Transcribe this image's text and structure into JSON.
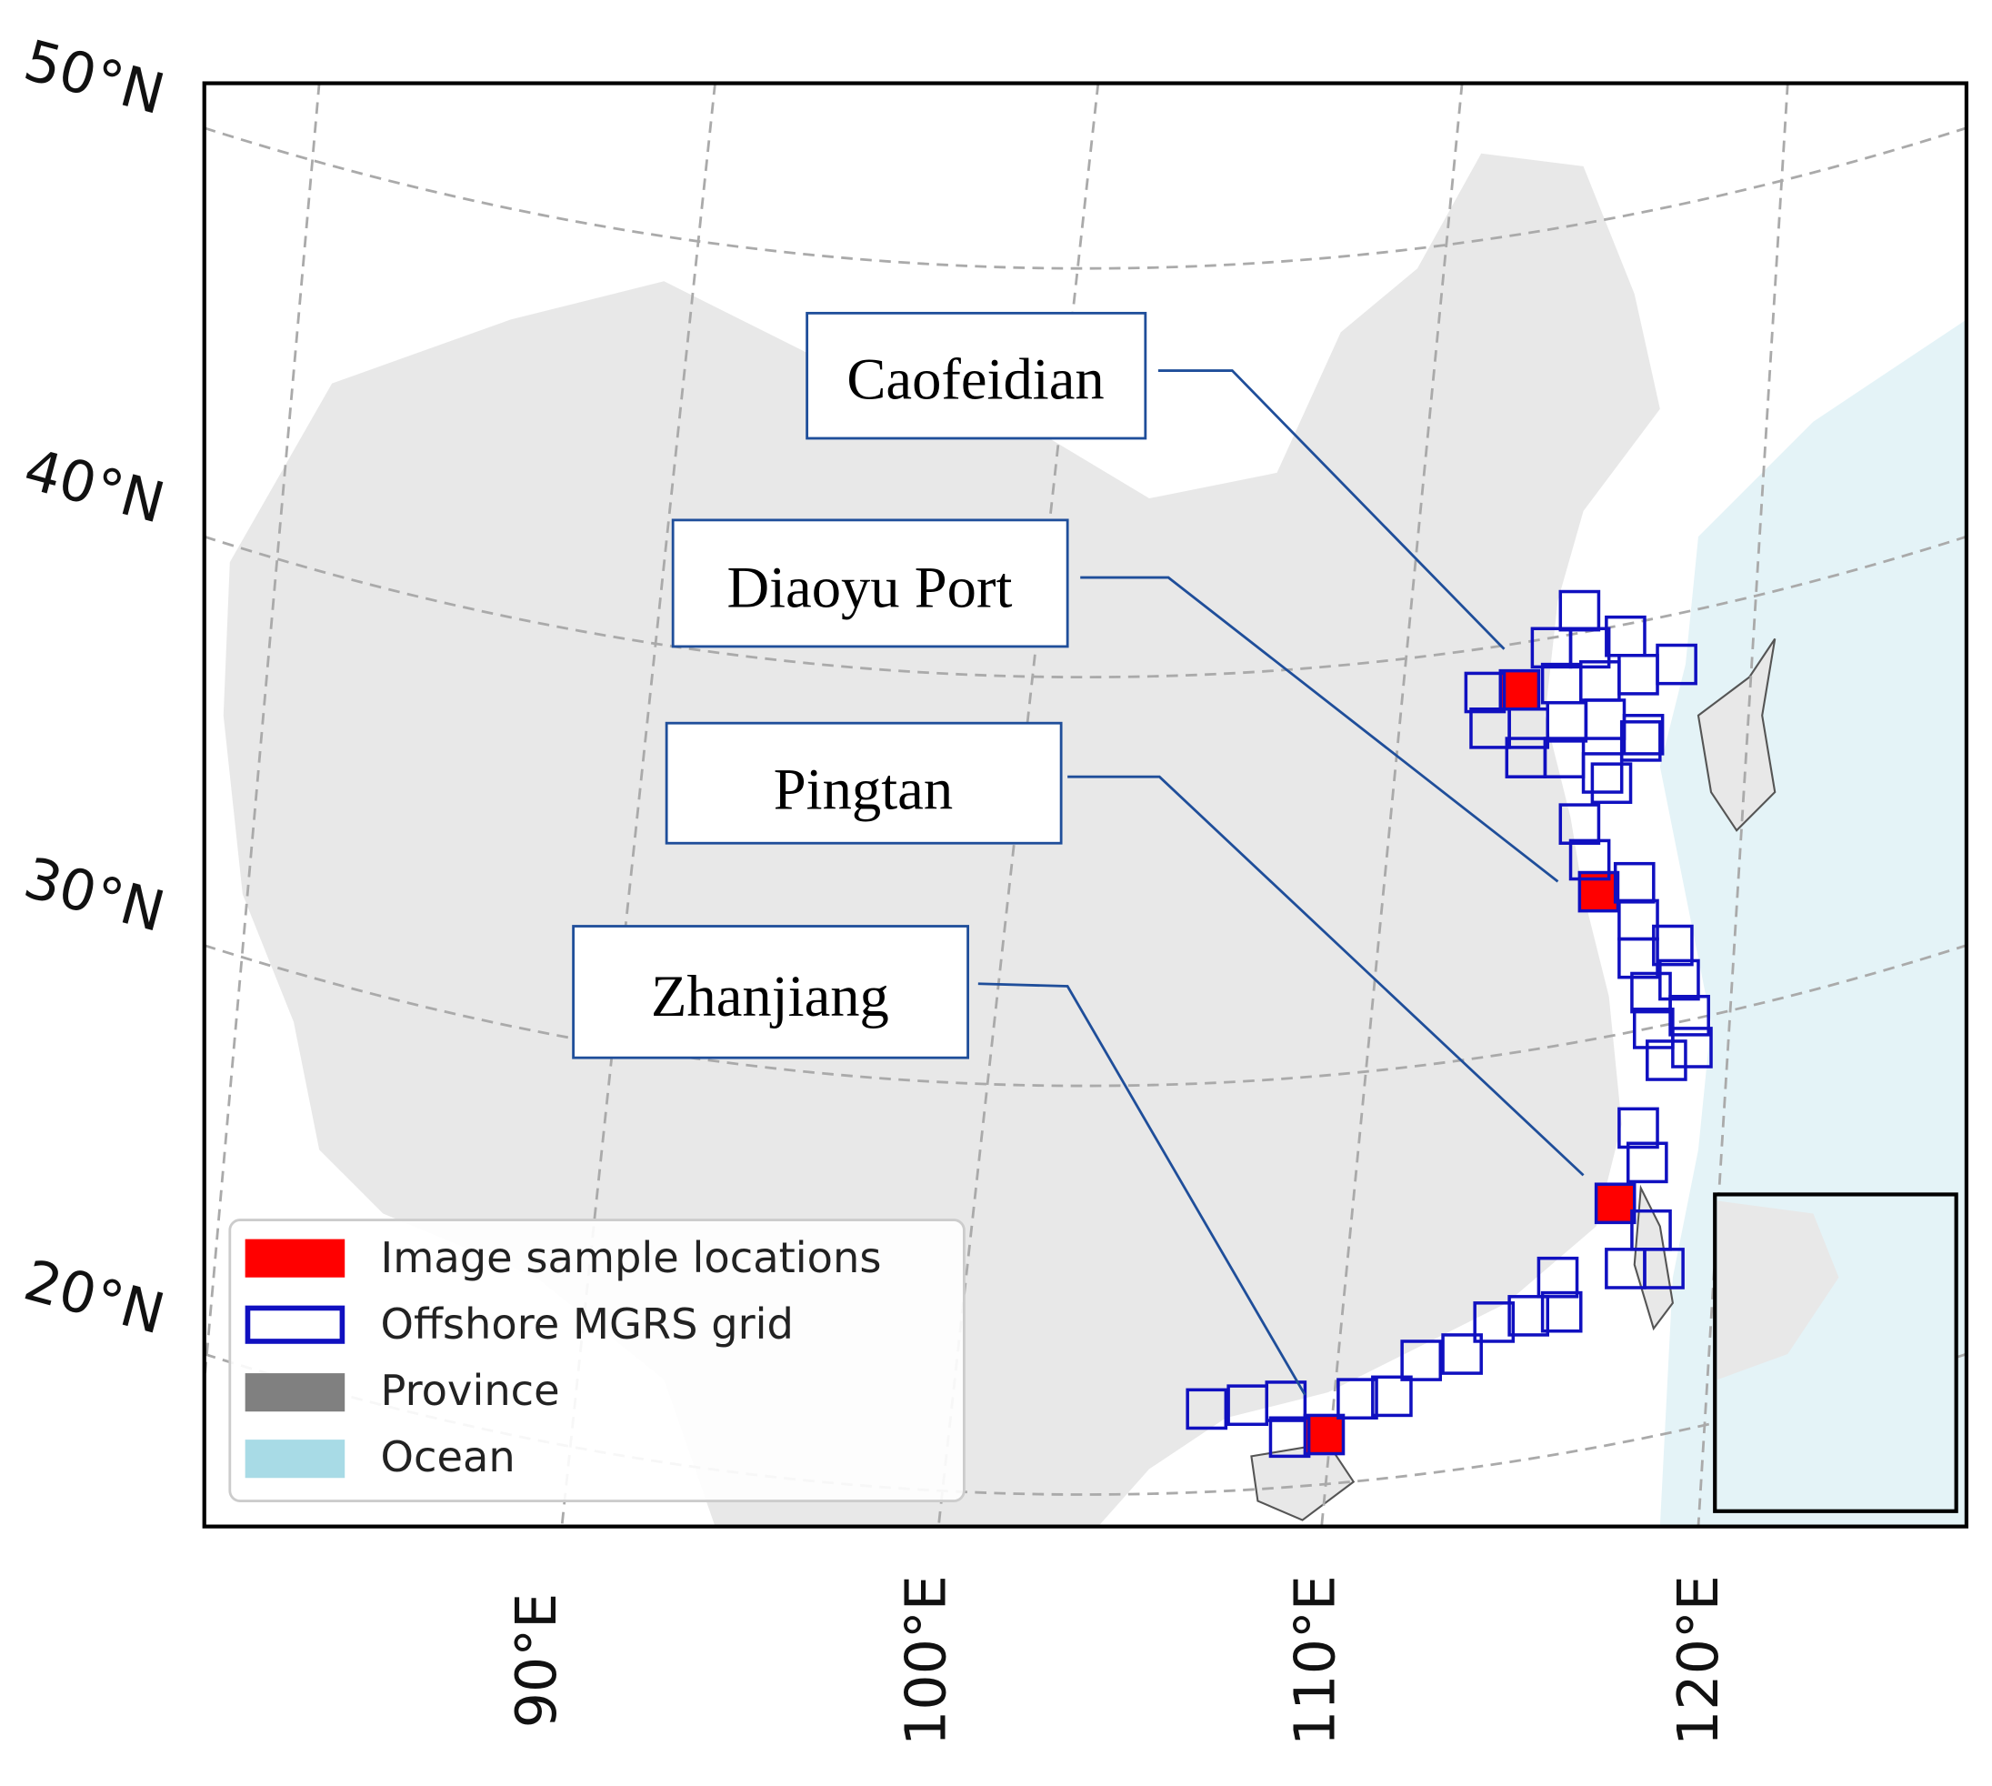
{
  "map": {
    "lat_labels": [
      "50°N",
      "40°N",
      "30°N",
      "20°N"
    ],
    "lon_labels": [
      "90°E",
      "100°E",
      "110°E",
      "120°E"
    ],
    "callouts": [
      "Caofeidian",
      "Diaoyu Port",
      "Pingtan",
      "Zhanjiang"
    ],
    "legend": [
      "Image sample locations",
      "Offshore MGRS grid",
      "Province",
      "Ocean"
    ]
  }
}
